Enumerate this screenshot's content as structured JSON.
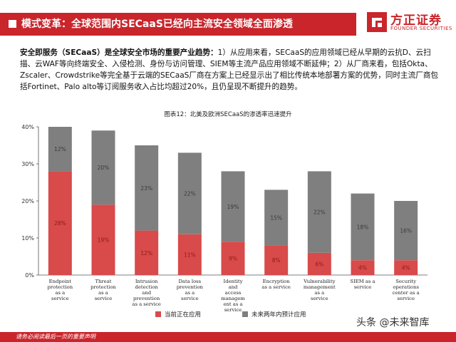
{
  "header": {
    "title": "模式变革：全球范围内SECaaS已经向主流安全领域全面渗透",
    "logo_cn": "方正证券",
    "logo_en": "FOUNDER SECURITIES"
  },
  "summary": {
    "lead": "安全即服务（SECaaS）是全球安全市场的重要产业趋势：",
    "body": "1）从应用来看，SECaaS的应用领域已经从早期的云抗D、云扫描、云WAF等向终端安全、入侵检测、身份与访问管理、SIEM等主流产品应用领域不断延伸；2）从厂商来看，包括Okta、Zscaler、Crowdstrike等完全基于云端的SECaaS厂商在方案上已经显示出了相比传统本地部署方案的优势，同时主流厂商包括Fortinet、Palo alto等订阅服务收入占比均超过20%，且仍呈现不断提升的趋势。"
  },
  "footer": {
    "text": "请务必阅读最后一页的重要声明"
  },
  "watermark": "头条 @未来智库",
  "colors": {
    "brand": "#c9252b",
    "current": "#d94a4a",
    "future": "#7f7f7f"
  },
  "chart_data": {
    "type": "bar",
    "stacked": true,
    "title": "图表12：北美及欧洲SECaaS的渗透率迅速提升",
    "categories": [
      [
        "Endpoint",
        "protection",
        "as a",
        "service"
      ],
      [
        "Threat",
        "protection",
        "as a",
        "service"
      ],
      [
        "Intrusion",
        "detection",
        "and",
        "prevention",
        "as a service"
      ],
      [
        "Data loss",
        "prevention",
        "as a",
        "service"
      ],
      [
        "Identity",
        "and",
        "access",
        "managem",
        "ent as a",
        "service"
      ],
      [
        "Encryption",
        "as a service"
      ],
      [
        "Vulnerability",
        "management",
        "as a",
        "service"
      ],
      [
        "SIEM as a",
        "service"
      ],
      [
        "Security",
        "operations",
        "center as a",
        "service"
      ]
    ],
    "series": [
      {
        "name": "当前正在应用",
        "values": [
          28,
          19,
          12,
          11,
          9,
          8,
          6,
          4,
          4
        ],
        "labels": [
          "28%",
          "19%",
          "12%",
          "11%",
          "9%",
          "8%",
          "6%",
          "4%",
          "4%"
        ]
      },
      {
        "name": "未来两年内预计应用",
        "values": [
          12,
          20,
          23,
          22,
          19,
          15,
          22,
          18,
          16
        ],
        "labels": [
          "12%",
          "20%",
          "23%",
          "22%",
          "19%",
          "15%",
          "22%",
          "18%",
          "16%"
        ]
      }
    ],
    "yticks": [
      "0%",
      "10%",
      "20%",
      "30%",
      "40%"
    ],
    "ylim": [
      0,
      40
    ],
    "legend_position": "bottom",
    "grid": false
  }
}
